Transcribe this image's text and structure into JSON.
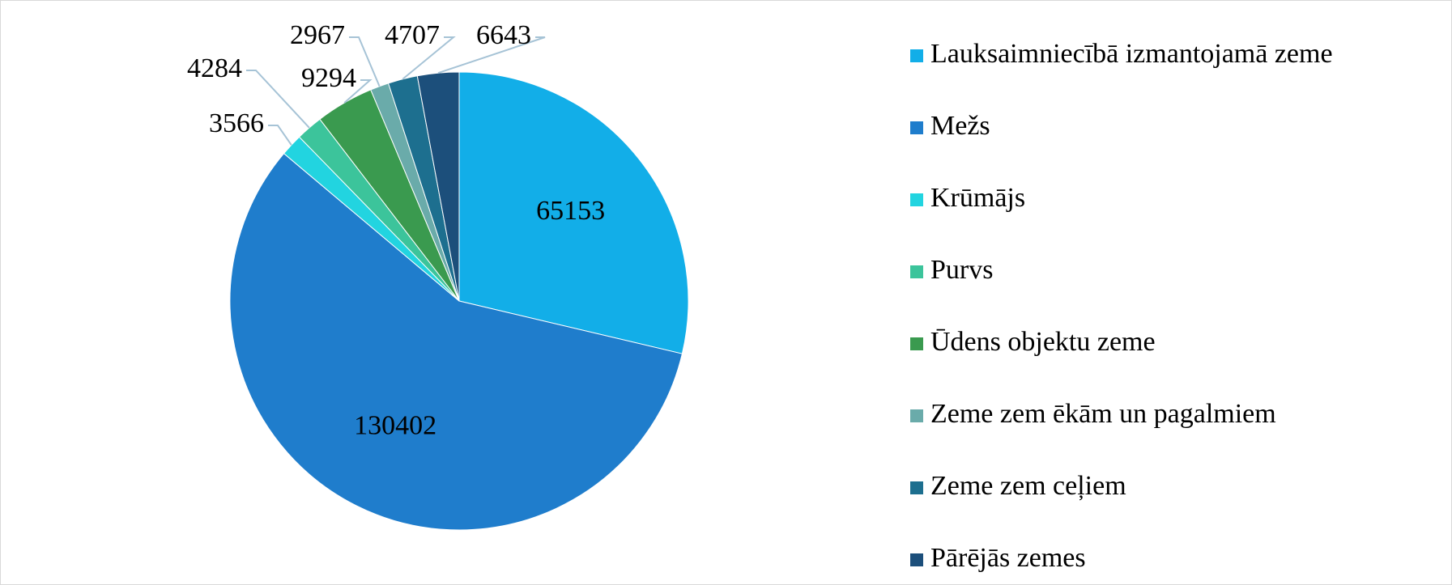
{
  "chart_data": {
    "type": "pie",
    "categories": [
      "Lauksaimniecībā izmantojamā zeme",
      "Mežs",
      "Krūmājs",
      "Purvs",
      "Ūdens objektu zeme",
      "Zeme zem ēkām un pagalmiem",
      "Zeme zem ceļiem",
      "Pārējās zemes"
    ],
    "values": [
      65153,
      130402,
      3566,
      4284,
      9294,
      2967,
      4707,
      6643
    ],
    "colors": [
      "#12aee8",
      "#1f7dcc",
      "#22d4e0",
      "#3cc49b",
      "#3a9a4f",
      "#6aabaa",
      "#1d6f8f",
      "#1c4f7b"
    ],
    "legend": "right"
  }
}
